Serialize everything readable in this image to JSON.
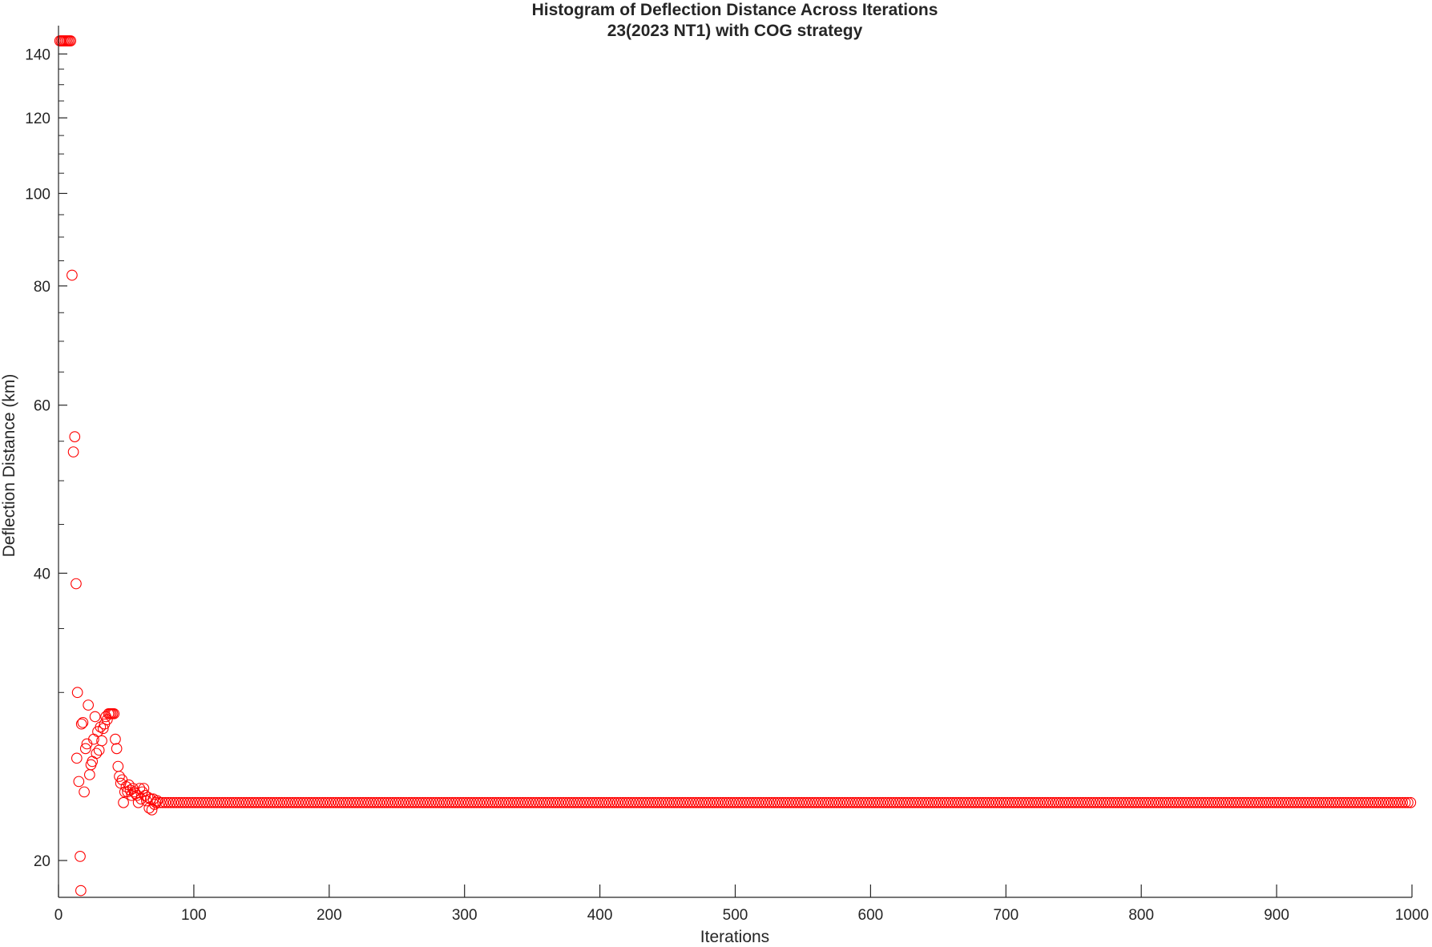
{
  "chart_data": {
    "type": "scatter",
    "title": "Histogram of Deflection Distance Across Iterations",
    "subtitle": "23(2023 NT1) with COG strategy",
    "xlabel": "Iterations",
    "ylabel": "Deflection Distance (km)",
    "xlim": [
      0,
      1000
    ],
    "ylim": [
      18.3,
      144.5
    ],
    "yscale": "log",
    "x_ticks": [
      0,
      100,
      200,
      300,
      400,
      500,
      600,
      700,
      800,
      900,
      1000
    ],
    "y_ticks": [
      20,
      40,
      60,
      80,
      100,
      120,
      140
    ],
    "y_minor_ticks": [
      30,
      35,
      45,
      50,
      55,
      65,
      70,
      75,
      85,
      90,
      95,
      105,
      110,
      115,
      125,
      130,
      135
    ],
    "grid": false,
    "marker": "open-circle",
    "marker_color": "#ff0000",
    "axis_color": "#262626",
    "plateau": {
      "x_start": 75,
      "x_end": 1000,
      "step": 2,
      "y": 23.0
    },
    "points": [
      {
        "x": 1,
        "y": 144.5
      },
      {
        "x": 2,
        "y": 144.5
      },
      {
        "x": 3,
        "y": 144.5
      },
      {
        "x": 4,
        "y": 144.5
      },
      {
        "x": 5,
        "y": 144.5
      },
      {
        "x": 6,
        "y": 144.5
      },
      {
        "x": 7,
        "y": 144.5
      },
      {
        "x": 8,
        "y": 144.5
      },
      {
        "x": 9,
        "y": 144.5
      },
      {
        "x": 10,
        "y": 82.1
      },
      {
        "x": 11,
        "y": 53.6
      },
      {
        "x": 12,
        "y": 55.6
      },
      {
        "x": 13,
        "y": 39.0
      },
      {
        "x": 13.5,
        "y": 25.6
      },
      {
        "x": 14,
        "y": 30.0
      },
      {
        "x": 15,
        "y": 24.2
      },
      {
        "x": 16,
        "y": 20.2
      },
      {
        "x": 16.5,
        "y": 18.6
      },
      {
        "x": 17,
        "y": 27.8
      },
      {
        "x": 18,
        "y": 27.9
      },
      {
        "x": 19,
        "y": 23.6
      },
      {
        "x": 20,
        "y": 26.2
      },
      {
        "x": 21,
        "y": 26.5
      },
      {
        "x": 22,
        "y": 29.1
      },
      {
        "x": 23,
        "y": 24.6
      },
      {
        "x": 24,
        "y": 25.2
      },
      {
        "x": 25,
        "y": 25.4
      },
      {
        "x": 26,
        "y": 26.8
      },
      {
        "x": 27,
        "y": 28.3
      },
      {
        "x": 28,
        "y": 25.9
      },
      {
        "x": 29,
        "y": 27.3
      },
      {
        "x": 30,
        "y": 26.1
      },
      {
        "x": 31,
        "y": 27.6
      },
      {
        "x": 32,
        "y": 26.7
      },
      {
        "x": 33,
        "y": 27.5
      },
      {
        "x": 34,
        "y": 27.8
      },
      {
        "x": 35,
        "y": 28.3
      },
      {
        "x": 36,
        "y": 28.1
      },
      {
        "x": 37,
        "y": 28.5
      },
      {
        "x": 38,
        "y": 28.5
      },
      {
        "x": 39,
        "y": 28.5
      },
      {
        "x": 40,
        "y": 28.5
      },
      {
        "x": 41,
        "y": 28.5
      },
      {
        "x": 42,
        "y": 26.8
      },
      {
        "x": 43,
        "y": 26.2
      },
      {
        "x": 44,
        "y": 25.1
      },
      {
        "x": 45,
        "y": 24.5
      },
      {
        "x": 46,
        "y": 24.1
      },
      {
        "x": 47,
        "y": 24.3
      },
      {
        "x": 48,
        "y": 23.0
      },
      {
        "x": 49,
        "y": 23.6
      },
      {
        "x": 50,
        "y": 23.9
      },
      {
        "x": 51,
        "y": 23.6
      },
      {
        "x": 52,
        "y": 24.0
      },
      {
        "x": 53,
        "y": 23.7
      },
      {
        "x": 54,
        "y": 23.4
      },
      {
        "x": 55,
        "y": 23.8
      },
      {
        "x": 56,
        "y": 23.6
      },
      {
        "x": 57,
        "y": 23.5
      },
      {
        "x": 58,
        "y": 23.4
      },
      {
        "x": 59,
        "y": 23.0
      },
      {
        "x": 60,
        "y": 23.8
      },
      {
        "x": 61,
        "y": 23.2
      },
      {
        "x": 62,
        "y": 23.6
      },
      {
        "x": 63,
        "y": 23.8
      },
      {
        "x": 64,
        "y": 23.4
      },
      {
        "x": 65,
        "y": 23.1
      },
      {
        "x": 66,
        "y": 23.3
      },
      {
        "x": 67,
        "y": 22.7
      },
      {
        "x": 68,
        "y": 23.2
      },
      {
        "x": 69,
        "y": 22.6
      },
      {
        "x": 70,
        "y": 23.2
      },
      {
        "x": 71,
        "y": 22.9
      },
      {
        "x": 72,
        "y": 23.0
      },
      {
        "x": 73,
        "y": 23.1
      }
    ]
  }
}
